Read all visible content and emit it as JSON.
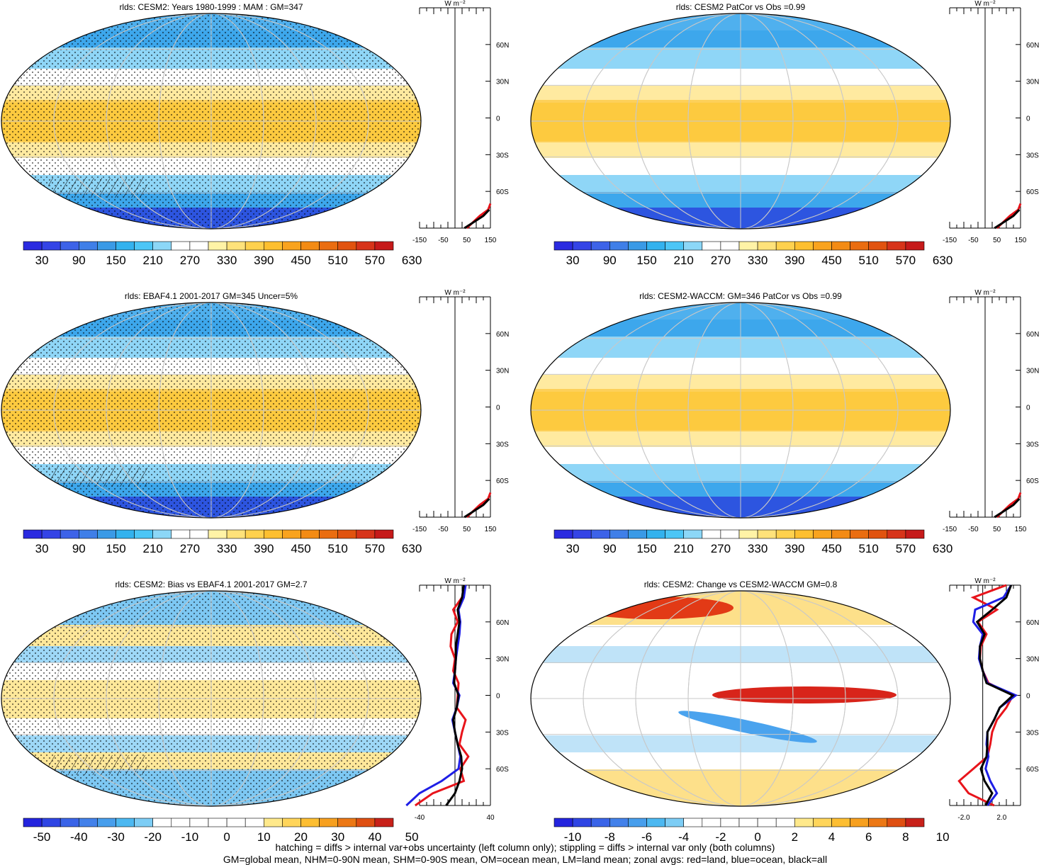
{
  "figure": {
    "footer_lines": [
      "hatching = diffs > internal var+obs uncertainty (left column only); stippling = diffs > internal var only (both columns)",
      "GM=global mean, NHM=0-90N mean, SHM=0-90S mean, OM=ocean mean, LM=land mean; zonal avgs: red=land, blue=ocean, black=all"
    ]
  },
  "colors": {
    "line_land": "#e8141b",
    "line_ocean": "#1e1ee6",
    "line_all": "#000000",
    "scale_low": "#1f1fe0",
    "scale_mid": "#ffffff",
    "scale_high": "#d7191c"
  },
  "colorbars": {
    "absolute": [
      "30",
      "90",
      "150",
      "210",
      "270",
      "330",
      "390",
      "450",
      "510",
      "570",
      "630"
    ],
    "bias": [
      "-50",
      "-40",
      "-30",
      "-20",
      "-10",
      "0",
      "10",
      "20",
      "30",
      "40",
      "50"
    ],
    "change": [
      "-10",
      "-8",
      "-6",
      "-4",
      "-2",
      "0",
      "2",
      "4",
      "6",
      "8",
      "10"
    ]
  },
  "chart_data": [
    {
      "type": "heatmap",
      "title": "rlds: CESM2: Years 1980-1999 : MAM : GM=347",
      "colorbar_ticks": [
        30,
        90,
        150,
        210,
        270,
        330,
        390,
        450,
        510,
        570,
        630
      ],
      "zonal_profile": {
        "ylabel": "W m⁻²",
        "x_ticks": [
          "-150",
          "-50",
          "50",
          "150"
        ],
        "y_ticks": [
          "60N",
          "30N",
          "0",
          "30S",
          "60S"
        ],
        "series": [
          {
            "name": "red",
            "lat": [
              -90,
              -80,
              -75,
              -70
            ],
            "values": [
              50,
              105,
              140,
              150
            ]
          },
          {
            "name": "black",
            "lat": [
              -90,
              -85,
              -80,
              -75
            ],
            "values": [
              40,
              80,
              120,
              145
            ]
          }
        ]
      }
    },
    {
      "type": "heatmap",
      "title": "rlds: CESM2 PatCor vs Obs =0.99",
      "colorbar_ticks": [
        30,
        90,
        150,
        210,
        270,
        330,
        390,
        450,
        510,
        570,
        630
      ],
      "zonal_profile": {
        "ylabel": "W m⁻²",
        "x_ticks": [
          "-150",
          "-50",
          "50",
          "150"
        ],
        "y_ticks": [
          "60N",
          "30N",
          "0",
          "30S",
          "60S"
        ],
        "series": [
          {
            "name": "red",
            "lat": [
              -90,
              -80,
              -75,
              -70
            ],
            "values": [
              50,
              105,
              140,
              150
            ]
          },
          {
            "name": "black",
            "lat": [
              -90,
              -85,
              -80,
              -75
            ],
            "values": [
              40,
              80,
              120,
              145
            ]
          }
        ]
      }
    },
    {
      "type": "heatmap",
      "title": "rlds: EBAF4.1 2001-2017 GM=345 Uncer=5%",
      "colorbar_ticks": [
        30,
        90,
        150,
        210,
        270,
        330,
        390,
        450,
        510,
        570,
        630
      ],
      "zonal_profile": {
        "ylabel": "W m⁻²",
        "x_ticks": [
          "-150",
          "-50",
          "50",
          "150"
        ],
        "y_ticks": [
          "60N",
          "30N",
          "0",
          "30S",
          "60S"
        ],
        "series": [
          {
            "name": "red",
            "lat": [
              -90,
              -80,
              -75,
              -70
            ],
            "values": [
              50,
              105,
              140,
              150
            ]
          },
          {
            "name": "black",
            "lat": [
              -90,
              -85,
              -80,
              -75
            ],
            "values": [
              40,
              80,
              120,
              145
            ]
          }
        ]
      }
    },
    {
      "type": "heatmap",
      "title": "rlds: CESM2-WACCM: GM=346 PatCor vs Obs =0.99",
      "colorbar_ticks": [
        30,
        90,
        150,
        210,
        270,
        330,
        390,
        450,
        510,
        570,
        630
      ],
      "zonal_profile": {
        "ylabel": "W m⁻²",
        "x_ticks": [
          "-150",
          "-50",
          "50",
          "150"
        ],
        "y_ticks": [
          "60N",
          "30N",
          "0",
          "30S",
          "60S"
        ],
        "series": [
          {
            "name": "red",
            "lat": [
              -90,
              -80,
              -75,
              -70
            ],
            "values": [
              50,
              105,
              140,
              150
            ]
          },
          {
            "name": "black",
            "lat": [
              -90,
              -85,
              -80,
              -75
            ],
            "values": [
              40,
              80,
              120,
              145
            ]
          }
        ]
      }
    },
    {
      "type": "heatmap",
      "title": "rlds: CESM2: Bias vs EBAF4.1 2001-2017 GM=2.7",
      "colorbar_ticks": [
        -50,
        -40,
        -30,
        -20,
        -10,
        0,
        10,
        20,
        30,
        40,
        50
      ],
      "zonal_profile": {
        "ylabel": "W m⁻²",
        "x_ticks": [
          "-40",
          "40"
        ],
        "y_ticks": [
          "60N",
          "30N",
          "0",
          "30S",
          "60S"
        ],
        "series": [
          {
            "name": "red",
            "lat": [
              -90,
              -80,
              -70,
              -60,
              -50,
              -40,
              -30,
              -20,
              -10,
              0,
              10,
              20,
              30,
              40,
              50,
              60,
              70,
              80,
              90
            ],
            "values": [
              -45,
              -25,
              10,
              6,
              15,
              5,
              8,
              12,
              2,
              3,
              4,
              -2,
              0,
              -5,
              -4,
              3,
              -2,
              8,
              12
            ]
          },
          {
            "name": "blue",
            "lat": [
              -90,
              -80,
              -70,
              -60,
              -50,
              -40,
              -30,
              -20,
              -10,
              0,
              10,
              20,
              30,
              40,
              50,
              60,
              70,
              80,
              90
            ],
            "values": [
              -55,
              -40,
              -15,
              4,
              6,
              3,
              0,
              -3,
              2,
              5,
              -2,
              0,
              1,
              3,
              5,
              6,
              4,
              10,
              12
            ]
          },
          {
            "name": "black",
            "lat": [
              -90,
              -80,
              -70,
              -60,
              -50,
              -40,
              -30,
              -20,
              -10,
              0,
              10,
              20,
              30,
              40,
              50,
              60,
              70,
              80,
              90
            ],
            "values": [
              -10,
              0,
              5,
              8,
              7,
              3,
              0,
              -2,
              2,
              4,
              -1,
              0,
              1,
              1,
              3,
              5,
              3,
              8,
              10
            ]
          }
        ]
      }
    },
    {
      "type": "heatmap",
      "title": "rlds: CESM2: Change vs CESM2-WACCM GM=0.8",
      "colorbar_ticks": [
        -10,
        -8,
        -6,
        -4,
        -2,
        0,
        2,
        4,
        6,
        8,
        10
      ],
      "zonal_profile": {
        "ylabel": "W m⁻²",
        "x_ticks": [
          "-2.0",
          "2.0"
        ],
        "y_ticks": [
          "60N",
          "30N",
          "0",
          "30S",
          "60S"
        ],
        "series": [
          {
            "name": "red",
            "lat": [
              -90,
              -80,
              -70,
              -60,
              -50,
              -40,
              -30,
              -20,
              -10,
              0,
              10,
              20,
              30,
              40,
              50,
              60,
              70,
              80,
              90
            ],
            "values": [
              1.2,
              -1.5,
              -2.5,
              -1,
              0.5,
              0.8,
              1,
              1.5,
              2.5,
              3.2,
              0.6,
              0,
              -0.3,
              -0.2,
              0.4,
              -0.5,
              1.5,
              -1,
              2.5
            ]
          },
          {
            "name": "blue",
            "lat": [
              -90,
              -80,
              -70,
              -60,
              -50,
              -40,
              -30,
              -20,
              -10,
              0,
              10,
              20,
              30,
              40,
              50,
              60,
              70,
              80,
              90
            ],
            "values": [
              0.5,
              1.5,
              0.8,
              0.3,
              0.6,
              0.4,
              0.5,
              1.2,
              1.8,
              3.5,
              0.5,
              0,
              -0.4,
              -0.3,
              0,
              -1,
              -0.8,
              2.2,
              3
            ]
          },
          {
            "name": "black",
            "lat": [
              -90,
              -80,
              -70,
              -60,
              -50,
              -40,
              -30,
              -20,
              -10,
              0,
              10,
              20,
              30,
              40,
              50,
              60,
              70,
              80,
              90
            ],
            "values": [
              0.3,
              1,
              0.2,
              -0.2,
              0.4,
              0.5,
              0.5,
              1.2,
              1.8,
              3.2,
              0.4,
              0,
              -0.3,
              -0.3,
              0.2,
              -0.6,
              1,
              2.5,
              3
            ]
          }
        ]
      }
    }
  ]
}
